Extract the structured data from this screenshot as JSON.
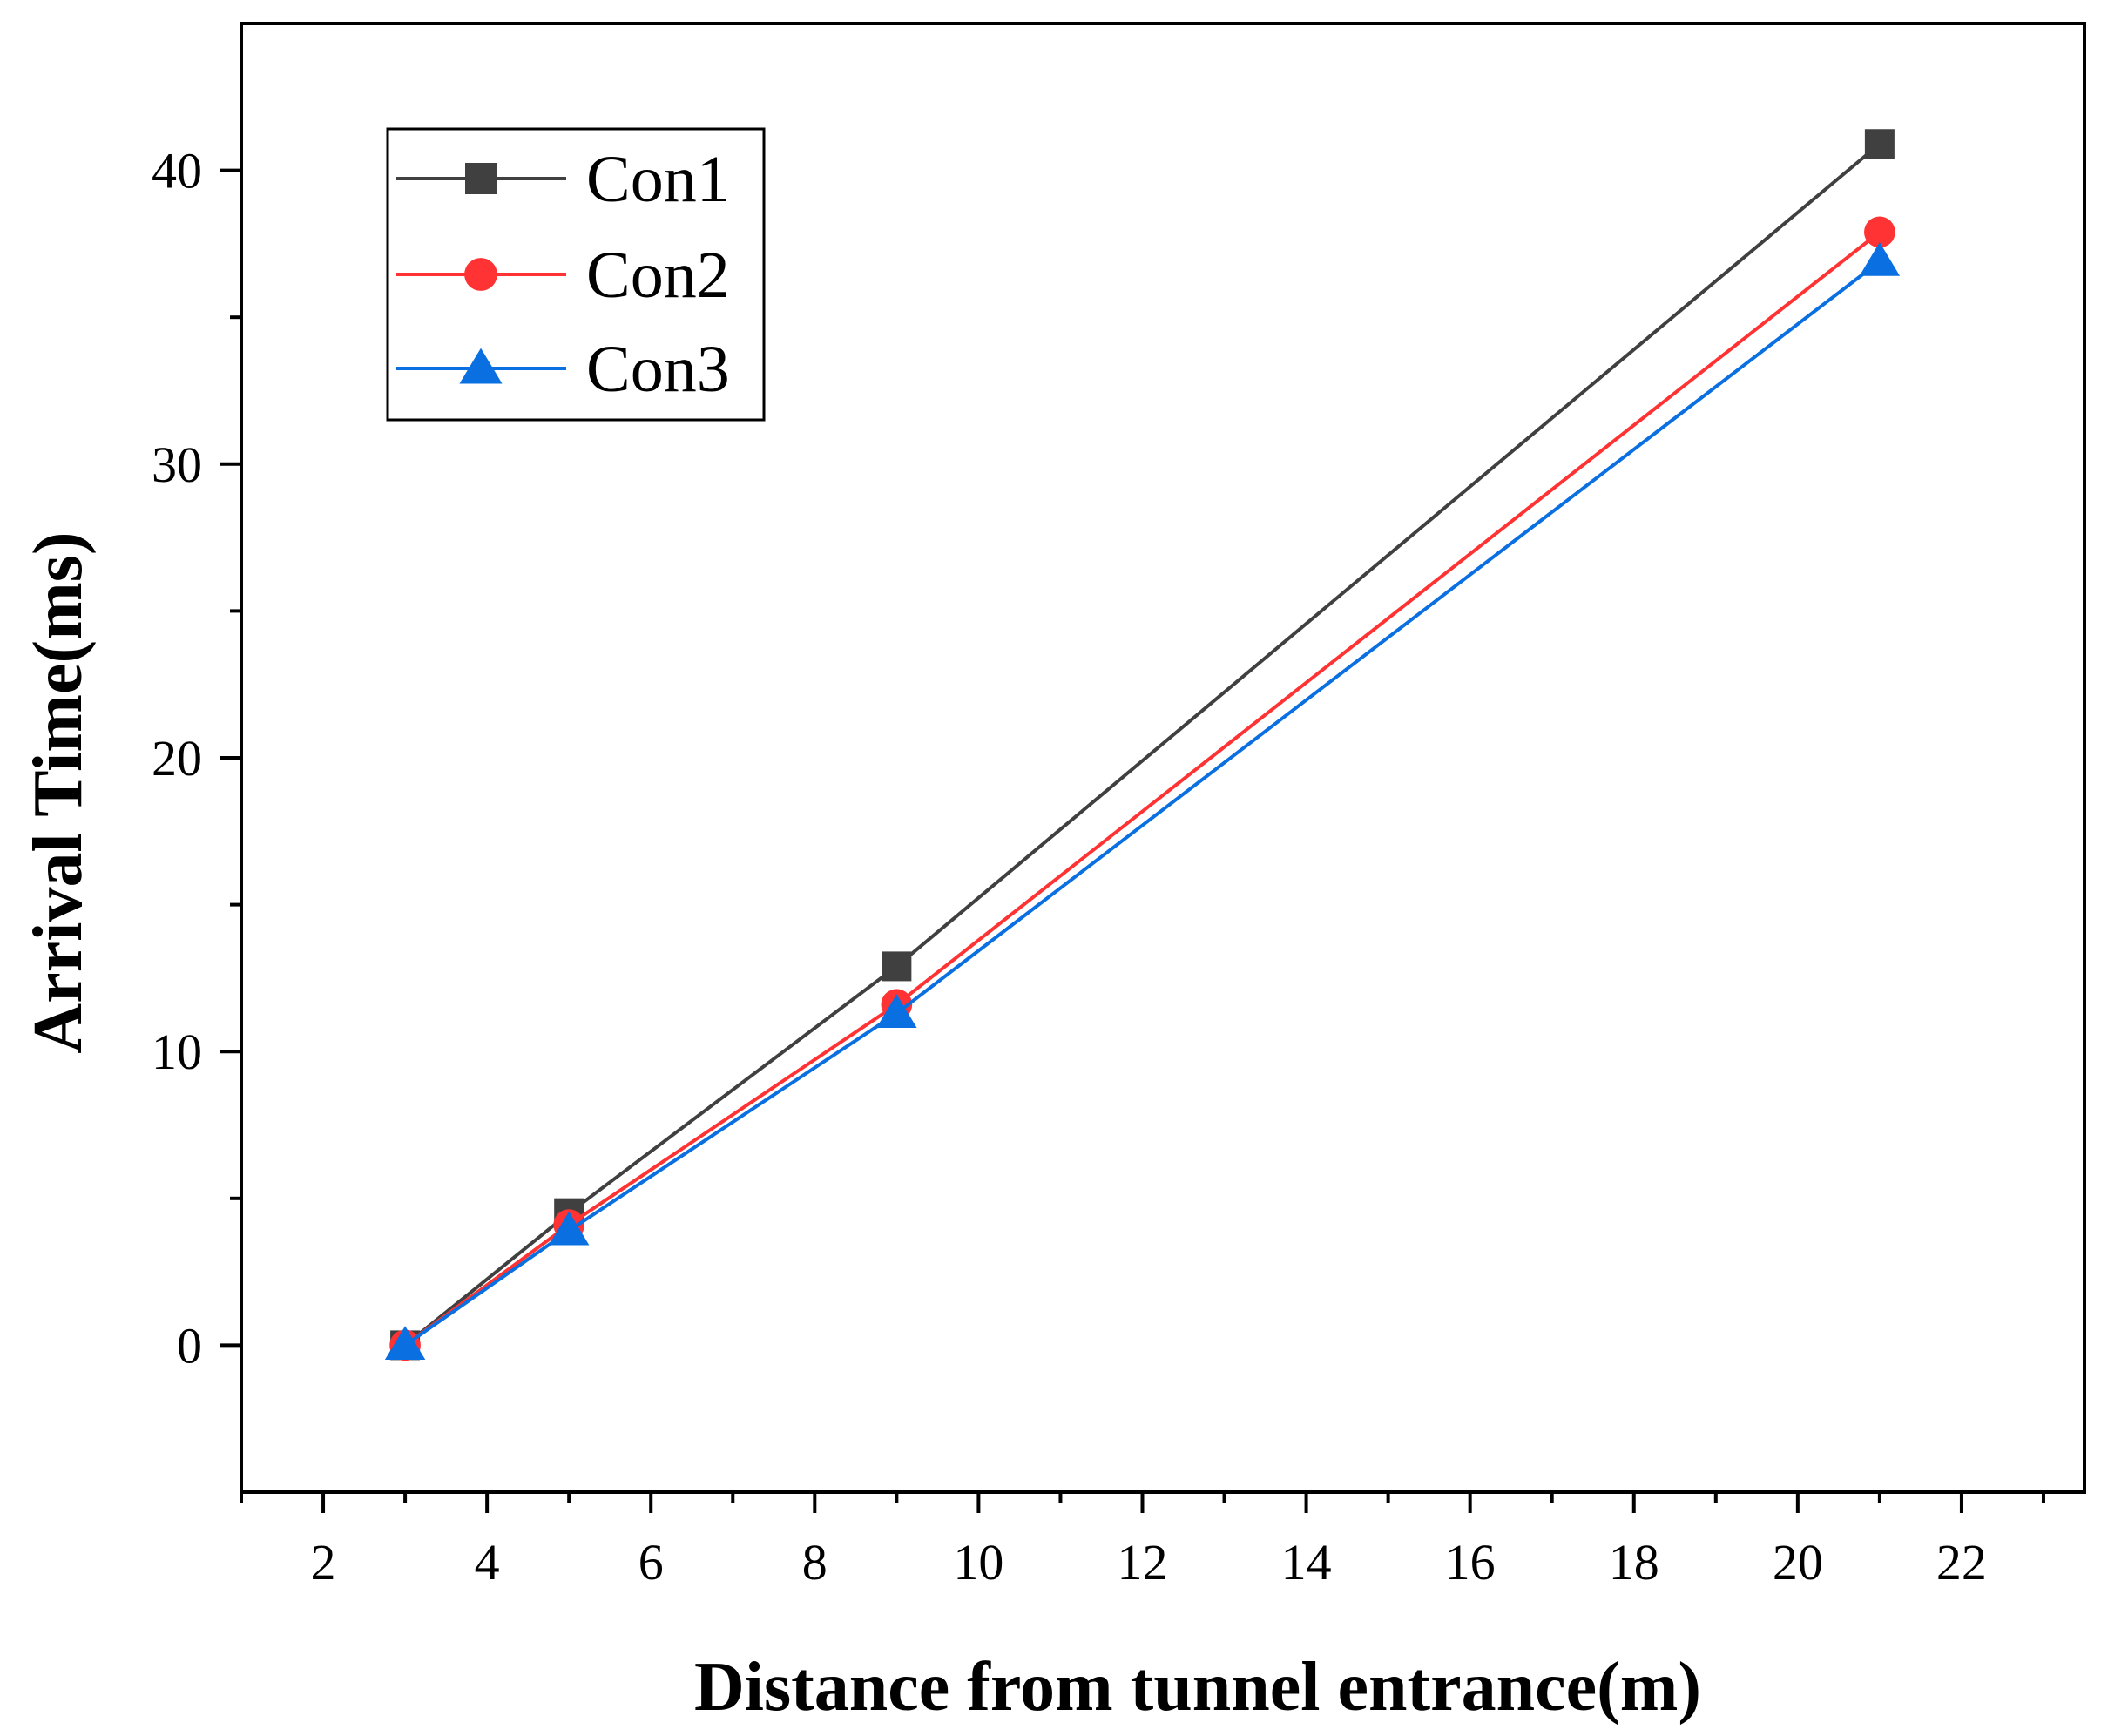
{
  "chart_data": {
    "type": "line",
    "title": "",
    "xlabel": "Distance from tunnel entrance(m)",
    "ylabel": "Arrival Time(ms)",
    "xlim": [
      1,
      23.5
    ],
    "ylim": [
      -5,
      45
    ],
    "x_ticks": [
      2,
      4,
      6,
      8,
      10,
      12,
      14,
      16,
      18,
      20,
      22
    ],
    "y_ticks": [
      0,
      10,
      20,
      30,
      40
    ],
    "x_tick_labels": [
      "2",
      "4",
      "6",
      "8",
      "10",
      "12",
      "14",
      "16",
      "18",
      "20",
      "22"
    ],
    "y_tick_labels": [
      "0",
      "10",
      "20",
      "30",
      "40"
    ],
    "grid": false,
    "legend_position": "top-left",
    "x": [
      3,
      5,
      9,
      21
    ],
    "series": [
      {
        "name": "Con1",
        "values": [
          0,
          4.5,
          12.9,
          40.9
        ],
        "color": "#404040",
        "marker": "square"
      },
      {
        "name": "Con2",
        "values": [
          0,
          4.1,
          11.6,
          37.9
        ],
        "color": "#ff3333",
        "marker": "circle"
      },
      {
        "name": "Con3",
        "values": [
          0,
          3.9,
          11.3,
          36.9
        ],
        "color": "#0a6fe0",
        "marker": "triangle"
      }
    ]
  }
}
